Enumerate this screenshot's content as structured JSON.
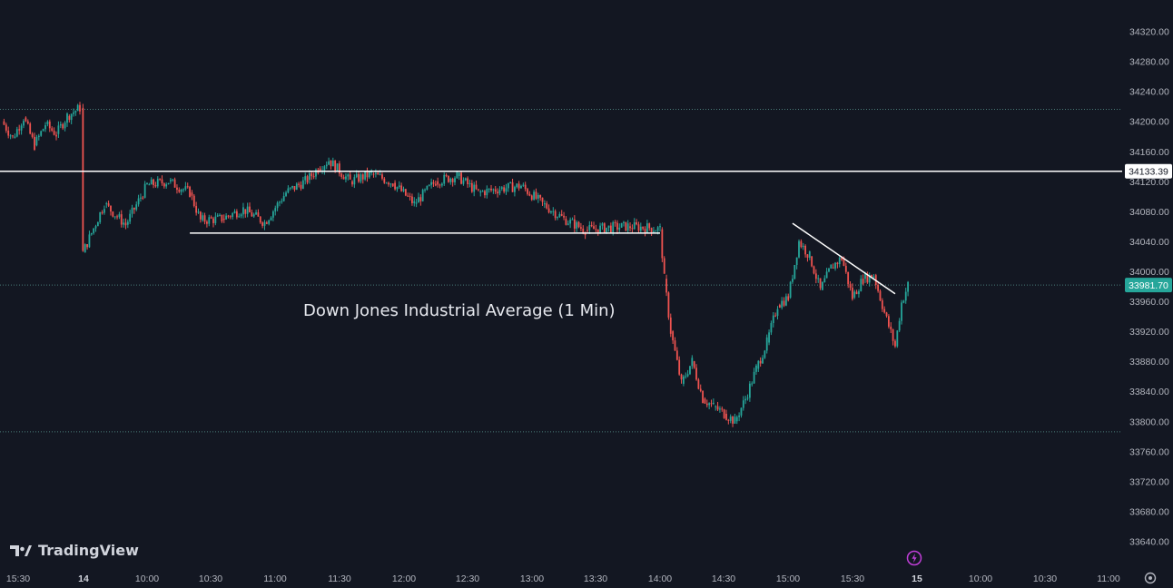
{
  "window": {
    "brand": "TradingView"
  },
  "annotation": "Down Jones Industrial Average (1 Min)",
  "colors": {
    "background": "#131722",
    "up_candle": "#26a69a",
    "down_candle": "#ef5350",
    "text": "#b2b5be",
    "line": "#ffffff",
    "price_label_bg": "#26a69a",
    "bolt": "#c03ed8"
  },
  "icons": [
    "tradingview-logo-icon",
    "lightning-icon",
    "settings-gear-icon"
  ],
  "chart_data": {
    "type": "candlestick",
    "ylim": [
      33620,
      34340
    ],
    "y_ticks": [
      "34320.00",
      "34280.00",
      "34240.00",
      "34200.00",
      "34160.00",
      "34120.00",
      "34080.00",
      "34040.00",
      "34000.00",
      "33960.00",
      "33920.00",
      "33880.00",
      "33840.00",
      "33800.00",
      "33760.00",
      "33720.00",
      "33680.00",
      "33640.00"
    ],
    "x_ticks": [
      "15:30",
      "14",
      "10:00",
      "10:30",
      "11:00",
      "11:30",
      "12:00",
      "12:30",
      "13:00",
      "13:30",
      "14:00",
      "14:30",
      "15:00",
      "15:30",
      "15",
      "10:00",
      "10:30",
      "11:00"
    ],
    "price_labels": [
      {
        "value": "34133.39",
        "style": "line"
      },
      {
        "value": "33981.70",
        "style": "last"
      }
    ],
    "horizontal_lines": [
      {
        "value": 34133.39,
        "span": "full"
      },
      {
        "value": 34051,
        "span": "10:20 to 14:00"
      }
    ],
    "dotted_levels": [
      34216,
      33981.7,
      33786
    ],
    "trendline": {
      "from": {
        "time": "15:02",
        "price": 34064
      },
      "to": {
        "time": "15:50",
        "price": 33970
      }
    },
    "price_path": [
      [
        "15:30",
        34200
      ],
      [
        "prev",
        34178
      ],
      [
        "prev",
        34205
      ],
      [
        "prev",
        34168
      ],
      [
        "prev",
        34196
      ],
      [
        "prev",
        34183
      ],
      [
        "prev",
        34207
      ],
      [
        "close",
        34218
      ],
      [
        "9:30",
        34025
      ],
      [
        "9:40",
        34090
      ],
      [
        "9:50",
        34062
      ],
      [
        "10:00",
        34115
      ],
      [
        "10:10",
        34120
      ],
      [
        "10:20",
        34105
      ],
      [
        "10:25",
        34068
      ],
      [
        "10:35",
        34070
      ],
      [
        "10:45",
        34083
      ],
      [
        "10:55",
        34065
      ],
      [
        "11:05",
        34105
      ],
      [
        "11:15",
        34122
      ],
      [
        "11:20",
        34137
      ],
      [
        "11:25",
        34148
      ],
      [
        "11:35",
        34120
      ],
      [
        "11:45",
        34130
      ],
      [
        "11:55",
        34118
      ],
      [
        "12:05",
        34090
      ],
      [
        "12:15",
        34120
      ],
      [
        "12:25",
        34127
      ],
      [
        "12:35",
        34105
      ],
      [
        "12:45",
        34110
      ],
      [
        "12:55",
        34114
      ],
      [
        "13:05",
        34090
      ],
      [
        "13:15",
        34070
      ],
      [
        "13:25",
        34055
      ],
      [
        "13:35",
        34058
      ],
      [
        "13:45",
        34060
      ],
      [
        "13:55",
        34058
      ],
      [
        "14:00",
        34056
      ],
      [
        "14:02",
        33990
      ],
      [
        "14:05",
        33920
      ],
      [
        "14:10",
        33850
      ],
      [
        "14:15",
        33880
      ],
      [
        "14:20",
        33830
      ],
      [
        "14:25",
        33820
      ],
      [
        "14:30",
        33810
      ],
      [
        "14:35",
        33800
      ],
      [
        "14:40",
        33830
      ],
      [
        "14:45",
        33870
      ],
      [
        "14:50",
        33905
      ],
      [
        "14:55",
        33955
      ],
      [
        "15:00",
        33965
      ],
      [
        "15:05",
        34040
      ],
      [
        "15:10",
        34020
      ],
      [
        "15:15",
        33975
      ],
      [
        "15:20",
        34005
      ],
      [
        "15:25",
        34018
      ],
      [
        "15:30",
        33965
      ],
      [
        "15:35",
        33990
      ],
      [
        "15:40",
        33995
      ],
      [
        "15:45",
        33945
      ],
      [
        "15:50",
        33900
      ],
      [
        "15:53",
        33958
      ],
      [
        "15:56",
        33981.7
      ]
    ]
  }
}
